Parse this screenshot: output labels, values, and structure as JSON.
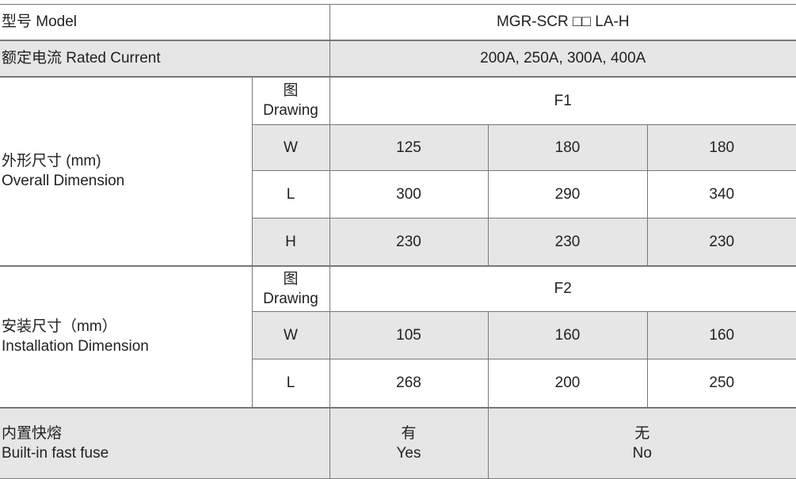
{
  "model": {
    "label": "型号 Model",
    "value": "MGR-SCR □□ LA-H"
  },
  "rated_current": {
    "label": "额定电流 Rated Current",
    "value": "200A, 250A, 300A, 400A"
  },
  "overall": {
    "label_cn": "外形尺寸 (mm)",
    "label_en": "Overall Dimension",
    "drawing_cn": "图",
    "drawing_en": "Drawing",
    "drawing": "F1",
    "rows": [
      {
        "key": "W",
        "values": [
          "125",
          "180",
          "180"
        ]
      },
      {
        "key": "L",
        "values": [
          "300",
          "290",
          "340"
        ]
      },
      {
        "key": "H",
        "values": [
          "230",
          "230",
          "230"
        ]
      }
    ]
  },
  "install": {
    "label_cn": "安装尺寸（mm）",
    "label_en": "Installation Dimension",
    "drawing_cn": "图",
    "drawing_en": "Drawing",
    "drawing": "F2",
    "rows": [
      {
        "key": "W",
        "values": [
          "105",
          "160",
          "160"
        ]
      },
      {
        "key": "L",
        "values": [
          "268",
          "200",
          "250"
        ]
      }
    ]
  },
  "fuse": {
    "label_cn": "内置快熔",
    "label_en": "Built-in fast fuse",
    "yes_cn": "有",
    "yes_en": "Yes",
    "no_cn": "无",
    "no_en": "No"
  }
}
